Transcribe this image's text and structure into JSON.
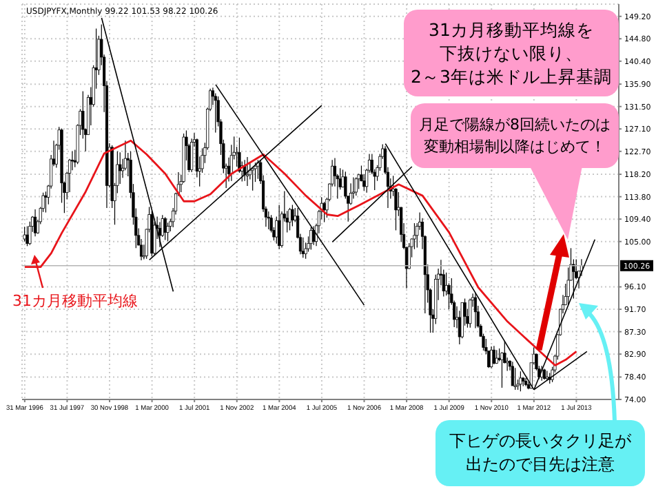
{
  "chart_data": {
    "type": "candlestick",
    "title": "USDJPYFX,Monthly  99.22 101.53 98.22 100.26",
    "color": "#000000",
    "x": [
      "1996-03",
      "1996-04",
      "1996-05",
      "1996-06",
      "1996-07",
      "1996-08",
      "1996-09",
      "1996-10",
      "1996-11",
      "1996-12",
      "1997-01",
      "1997-02",
      "1997-03",
      "1997-04",
      "1997-05",
      "1997-06",
      "1997-07",
      "1997-08",
      "1997-09",
      "1997-10",
      "1997-11",
      "1997-12",
      "1998-01",
      "1998-02",
      "1998-03",
      "1998-04",
      "1998-05",
      "1998-06",
      "1998-07",
      "1998-08",
      "1998-09",
      "1998-10",
      "1998-11",
      "1998-12",
      "1999-01",
      "1999-02",
      "1999-03",
      "1999-04",
      "1999-05",
      "1999-06",
      "1999-07",
      "1999-08",
      "1999-09",
      "1999-10",
      "1999-11",
      "1999-12",
      "2000-01",
      "2000-02",
      "2000-03",
      "2000-04",
      "2000-05",
      "2000-06",
      "2000-07",
      "2000-08",
      "2000-09",
      "2000-10",
      "2000-11",
      "2000-12",
      "2001-01",
      "2001-02",
      "2001-03",
      "2001-04",
      "2001-05",
      "2001-06",
      "2001-07",
      "2001-08",
      "2001-09",
      "2001-10",
      "2001-11",
      "2001-12",
      "2002-01",
      "2002-02",
      "2002-03",
      "2002-04",
      "2002-05",
      "2002-06",
      "2002-07",
      "2002-08",
      "2002-09",
      "2002-10",
      "2002-11",
      "2002-12",
      "2003-01",
      "2003-02",
      "2003-03",
      "2003-04",
      "2003-05",
      "2003-06",
      "2003-07",
      "2003-08",
      "2003-09",
      "2003-10",
      "2003-11",
      "2003-12",
      "2004-01",
      "2004-02",
      "2004-03",
      "2004-04",
      "2004-05",
      "2004-06",
      "2004-07",
      "2004-08",
      "2004-09",
      "2004-10",
      "2004-11",
      "2004-12",
      "2005-01",
      "2005-02",
      "2005-03",
      "2005-04",
      "2005-05",
      "2005-06",
      "2005-07",
      "2005-08",
      "2005-09",
      "2005-10",
      "2005-11",
      "2005-12",
      "2006-01",
      "2006-02",
      "2006-03",
      "2006-04",
      "2006-05",
      "2006-06",
      "2006-07",
      "2006-08",
      "2006-09",
      "2006-10",
      "2006-11",
      "2006-12",
      "2007-01",
      "2007-02",
      "2007-03",
      "2007-04",
      "2007-05",
      "2007-06",
      "2007-07",
      "2007-08",
      "2007-09",
      "2007-10",
      "2007-11",
      "2007-12",
      "2008-01",
      "2008-02",
      "2008-03",
      "2008-04",
      "2008-05",
      "2008-06",
      "2008-07",
      "2008-08",
      "2008-09",
      "2008-10",
      "2008-11",
      "2008-12",
      "2009-01",
      "2009-02",
      "2009-03",
      "2009-04",
      "2009-05",
      "2009-06",
      "2009-07",
      "2009-08",
      "2009-09",
      "2009-10",
      "2009-11",
      "2009-12",
      "2010-01",
      "2010-02",
      "2010-03",
      "2010-04",
      "2010-05",
      "2010-06",
      "2010-07",
      "2010-08",
      "2010-09",
      "2010-10",
      "2010-11",
      "2010-12",
      "2011-01",
      "2011-02",
      "2011-03",
      "2011-04",
      "2011-05",
      "2011-06",
      "2011-07",
      "2011-08",
      "2011-09",
      "2011-10",
      "2011-11",
      "2011-12",
      "2012-01",
      "2012-02",
      "2012-03",
      "2012-04",
      "2012-05",
      "2012-06",
      "2012-07",
      "2012-08",
      "2012-09",
      "2012-10",
      "2012-11",
      "2012-12",
      "2013-01",
      "2013-02",
      "2013-03",
      "2013-04",
      "2013-05",
      "2013-06",
      "2013-07",
      "2013-08",
      "2013-09"
    ],
    "ohlc": [
      [
        105.5,
        107.9,
        105.0,
        106.3
      ],
      [
        106.3,
        108.0,
        104.1,
        104.6
      ],
      [
        104.6,
        108.9,
        104.3,
        108.0
      ],
      [
        108.0,
        110.0,
        106.9,
        109.8
      ],
      [
        109.8,
        111.3,
        106.0,
        106.7
      ],
      [
        106.7,
        109.3,
        106.5,
        108.9
      ],
      [
        108.9,
        111.8,
        108.4,
        111.5
      ],
      [
        111.5,
        114.6,
        110.8,
        114.0
      ],
      [
        114.0,
        114.8,
        110.7,
        113.7
      ],
      [
        113.7,
        116.1,
        112.3,
        115.9
      ],
      [
        115.9,
        122.0,
        115.4,
        121.2
      ],
      [
        121.2,
        124.8,
        119.8,
        120.2
      ],
      [
        120.2,
        124.2,
        119.5,
        123.9
      ],
      [
        123.9,
        127.5,
        123.0,
        126.9
      ],
      [
        126.9,
        127.2,
        112.6,
        116.5
      ],
      [
        116.5,
        116.8,
        110.6,
        114.6
      ],
      [
        114.6,
        118.7,
        113.3,
        118.4
      ],
      [
        118.4,
        121.2,
        114.7,
        121.0
      ],
      [
        121.0,
        122.7,
        119.0,
        120.9
      ],
      [
        120.9,
        123.0,
        119.6,
        120.6
      ],
      [
        120.6,
        128.0,
        120.2,
        127.8
      ],
      [
        127.8,
        131.0,
        125.9,
        130.6
      ],
      [
        130.6,
        134.5,
        125.2,
        127.0
      ],
      [
        127.0,
        127.2,
        122.7,
        126.0
      ],
      [
        126.0,
        133.8,
        125.9,
        133.3
      ],
      [
        133.3,
        135.3,
        127.8,
        131.9
      ],
      [
        131.9,
        139.6,
        131.5,
        139.1
      ],
      [
        139.1,
        146.8,
        135.0,
        138.7
      ],
      [
        138.7,
        145.4,
        137.7,
        144.7
      ],
      [
        144.7,
        147.6,
        139.6,
        141.2
      ],
      [
        141.2,
        141.7,
        130.4,
        135.6
      ],
      [
        135.6,
        136.5,
        111.6,
        116.0
      ],
      [
        116.0,
        124.3,
        115.6,
        123.5
      ],
      [
        123.5,
        123.9,
        111.6,
        113.0
      ],
      [
        113.0,
        116.5,
        108.3,
        116.0
      ],
      [
        116.0,
        122.7,
        114.5,
        120.1
      ],
      [
        120.1,
        122.5,
        116.3,
        118.9
      ],
      [
        118.9,
        121.2,
        117.5,
        119.4
      ],
      [
        119.4,
        124.8,
        119.0,
        121.3
      ],
      [
        121.3,
        122.4,
        117.8,
        121.0
      ],
      [
        121.0,
        122.7,
        113.5,
        114.6
      ],
      [
        114.6,
        116.3,
        108.3,
        109.8
      ],
      [
        109.8,
        111.5,
        103.7,
        106.2
      ],
      [
        106.2,
        107.6,
        104.2,
        104.3
      ],
      [
        104.3,
        105.5,
        101.3,
        102.1
      ],
      [
        102.1,
        104.4,
        101.5,
        102.2
      ],
      [
        102.2,
        107.5,
        101.6,
        107.4
      ],
      [
        107.4,
        111.8,
        106.8,
        110.3
      ],
      [
        110.3,
        111.0,
        102.1,
        102.7
      ],
      [
        102.7,
        108.8,
        102.3,
        108.2
      ],
      [
        108.2,
        109.9,
        105.5,
        107.6
      ],
      [
        107.6,
        108.8,
        103.9,
        106.2
      ],
      [
        106.2,
        110.2,
        105.9,
        109.5
      ],
      [
        109.5,
        109.8,
        105.3,
        106.8
      ],
      [
        106.8,
        108.7,
        105.1,
        108.0
      ],
      [
        108.0,
        109.5,
        107.0,
        108.9
      ],
      [
        108.9,
        111.6,
        107.8,
        111.0
      ],
      [
        111.0,
        114.6,
        110.3,
        114.4
      ],
      [
        114.4,
        118.6,
        113.9,
        116.2
      ],
      [
        116.2,
        118.1,
        114.7,
        116.8
      ],
      [
        116.8,
        126.2,
        116.5,
        125.5
      ],
      [
        125.5,
        126.8,
        120.9,
        123.8
      ],
      [
        123.8,
        124.2,
        118.6,
        119.1
      ],
      [
        119.1,
        125.2,
        118.6,
        124.5
      ],
      [
        124.5,
        126.3,
        123.6,
        125.0
      ],
      [
        125.0,
        125.2,
        117.6,
        118.8
      ],
      [
        118.8,
        121.7,
        115.8,
        119.3
      ],
      [
        119.3,
        123.3,
        118.5,
        121.9
      ],
      [
        121.9,
        124.4,
        120.4,
        123.4
      ],
      [
        123.4,
        131.3,
        123.0,
        131.0
      ],
      [
        131.0,
        135.0,
        130.6,
        134.6
      ],
      [
        134.6,
        135.2,
        131.8,
        133.5
      ],
      [
        133.5,
        134.1,
        126.4,
        132.7
      ],
      [
        132.7,
        133.5,
        127.6,
        128.5
      ],
      [
        128.5,
        129.0,
        122.0,
        124.2
      ],
      [
        124.2,
        125.0,
        118.4,
        119.4
      ],
      [
        119.4,
        120.3,
        115.5,
        119.8
      ],
      [
        119.8,
        121.5,
        116.8,
        118.3
      ],
      [
        118.3,
        124.0,
        116.9,
        121.9
      ],
      [
        121.9,
        125.6,
        121.1,
        122.5
      ],
      [
        122.5,
        123.6,
        119.7,
        122.5
      ],
      [
        122.5,
        125.4,
        118.5,
        118.8
      ],
      [
        118.8,
        120.7,
        116.8,
        119.9
      ],
      [
        119.9,
        121.0,
        116.9,
        118.1
      ],
      [
        118.1,
        121.6,
        115.9,
        118.1
      ],
      [
        118.1,
        120.5,
        117.2,
        119.0
      ],
      [
        119.0,
        119.5,
        115.0,
        119.3
      ],
      [
        119.3,
        120.5,
        116.7,
        119.8
      ],
      [
        119.8,
        121.0,
        117.3,
        120.5
      ],
      [
        120.5,
        121.0,
        116.3,
        116.9
      ],
      [
        116.9,
        118.0,
        110.8,
        111.4
      ],
      [
        111.4,
        111.9,
        107.9,
        109.8
      ],
      [
        109.8,
        110.9,
        107.4,
        109.6
      ],
      [
        109.6,
        110.2,
        106.8,
        107.2
      ],
      [
        107.2,
        107.8,
        105.2,
        105.9
      ],
      [
        105.9,
        109.9,
        104.6,
        109.1
      ],
      [
        109.1,
        112.2,
        103.5,
        104.2
      ],
      [
        104.2,
        110.9,
        103.8,
        110.4
      ],
      [
        110.4,
        114.9,
        108.9,
        109.6
      ],
      [
        109.6,
        111.0,
        106.8,
        108.8
      ],
      [
        108.8,
        111.6,
        107.2,
        111.3
      ],
      [
        111.3,
        112.2,
        108.0,
        109.2
      ],
      [
        109.2,
        111.6,
        108.8,
        110.0
      ],
      [
        110.0,
        111.6,
        105.6,
        105.8
      ],
      [
        105.8,
        106.5,
        102.5,
        103.1
      ],
      [
        103.1,
        105.8,
        101.8,
        102.6
      ],
      [
        102.6,
        104.8,
        101.6,
        103.6
      ],
      [
        103.6,
        106.0,
        103.0,
        104.6
      ],
      [
        104.6,
        107.8,
        103.4,
        107.2
      ],
      [
        107.2,
        108.0,
        104.3,
        105.0
      ],
      [
        105.0,
        108.5,
        104.1,
        108.1
      ],
      [
        108.1,
        111.2,
        106.6,
        110.9
      ],
      [
        110.9,
        113.7,
        109.4,
        112.5
      ],
      [
        112.5,
        112.8,
        108.8,
        111.2
      ],
      [
        111.2,
        113.6,
        109.7,
        113.3
      ],
      [
        113.3,
        116.4,
        112.9,
        116.3
      ],
      [
        116.3,
        121.0,
        115.8,
        119.8
      ],
      [
        119.8,
        121.4,
        115.8,
        117.9
      ],
      [
        117.9,
        118.2,
        113.4,
        117.3
      ],
      [
        117.3,
        119.4,
        115.2,
        115.7
      ],
      [
        115.7,
        119.1,
        115.6,
        117.7
      ],
      [
        117.7,
        118.7,
        113.4,
        113.9
      ],
      [
        113.9,
        114.0,
        108.9,
        112.5
      ],
      [
        112.5,
        116.4,
        112.2,
        114.5
      ],
      [
        114.5,
        117.6,
        113.4,
        114.7
      ],
      [
        114.7,
        117.6,
        114.0,
        117.3
      ],
      [
        117.3,
        118.3,
        115.3,
        118.1
      ],
      [
        118.1,
        119.9,
        116.8,
        116.9
      ],
      [
        116.9,
        118.2,
        115.0,
        115.8
      ],
      [
        115.8,
        119.3,
        114.6,
        119.0
      ],
      [
        119.0,
        122.2,
        118.5,
        121.0
      ],
      [
        121.0,
        122.2,
        118.2,
        118.6
      ],
      [
        118.6,
        119.2,
        115.1,
        117.8
      ],
      [
        117.8,
        120.0,
        116.9,
        119.5
      ],
      [
        119.5,
        122.2,
        118.9,
        121.7
      ],
      [
        121.7,
        124.1,
        121.2,
        123.2
      ],
      [
        123.2,
        123.7,
        118.2,
        118.6
      ],
      [
        118.6,
        119.6,
        111.6,
        115.8
      ],
      [
        115.8,
        117.4,
        113.4,
        114.9
      ],
      [
        114.9,
        117.9,
        113.9,
        115.3
      ],
      [
        115.3,
        115.5,
        107.2,
        111.2
      ],
      [
        111.2,
        114.7,
        110.0,
        111.7
      ],
      [
        111.7,
        111.8,
        104.9,
        106.4
      ],
      [
        106.4,
        108.6,
        103.5,
        103.8
      ],
      [
        103.8,
        104.0,
        95.8,
        99.7
      ],
      [
        99.7,
        104.7,
        99.6,
        104.0
      ],
      [
        104.0,
        105.6,
        101.9,
        105.5
      ],
      [
        105.5,
        108.6,
        103.5,
        106.2
      ],
      [
        106.2,
        108.6,
        103.8,
        108.0
      ],
      [
        108.0,
        110.7,
        107.3,
        108.8
      ],
      [
        108.8,
        109.6,
        103.5,
        106.0
      ],
      [
        106.0,
        106.2,
        90.9,
        98.5
      ],
      [
        98.5,
        100.5,
        93.0,
        95.5
      ],
      [
        95.5,
        95.8,
        87.1,
        90.6
      ],
      [
        90.6,
        91.7,
        87.1,
        89.9
      ],
      [
        89.9,
        98.5,
        88.8,
        97.6
      ],
      [
        97.6,
        99.7,
        93.5,
        98.6
      ],
      [
        98.6,
        101.4,
        96.4,
        98.5
      ],
      [
        98.5,
        99.5,
        94.2,
        95.3
      ],
      [
        95.3,
        98.9,
        94.4,
        96.4
      ],
      [
        96.4,
        96.8,
        91.7,
        94.7
      ],
      [
        94.7,
        97.8,
        92.6,
        93.0
      ],
      [
        93.0,
        93.4,
        88.2,
        89.7
      ],
      [
        89.7,
        92.3,
        88.0,
        90.1
      ],
      [
        90.1,
        91.4,
        84.8,
        86.3
      ],
      [
        86.3,
        93.0,
        86.0,
        93.0
      ],
      [
        93.0,
        93.8,
        88.5,
        90.3
      ],
      [
        90.3,
        91.8,
        88.1,
        88.9
      ],
      [
        88.9,
        93.8,
        88.1,
        93.5
      ],
      [
        93.5,
        94.8,
        92.2,
        94.0
      ],
      [
        94.0,
        94.9,
        88.0,
        91.2
      ],
      [
        91.2,
        92.4,
        88.1,
        88.4
      ],
      [
        88.4,
        88.8,
        86.3,
        86.4
      ],
      [
        86.4,
        86.9,
        83.6,
        84.2
      ],
      [
        84.2,
        85.9,
        82.9,
        83.5
      ],
      [
        83.5,
        83.6,
        80.2,
        80.4
      ],
      [
        80.4,
        84.4,
        80.2,
        83.7
      ],
      [
        83.7,
        84.5,
        80.9,
        81.1
      ],
      [
        81.1,
        83.7,
        81.0,
        82.1
      ],
      [
        82.1,
        84.0,
        81.5,
        81.8
      ],
      [
        81.8,
        83.3,
        76.3,
        83.1
      ],
      [
        83.1,
        85.5,
        81.1,
        81.2
      ],
      [
        81.2,
        82.2,
        79.6,
        81.5
      ],
      [
        81.5,
        81.7,
        79.7,
        80.5
      ],
      [
        80.5,
        81.4,
        76.7,
        76.7
      ],
      [
        76.7,
        80.2,
        75.9,
        76.7
      ],
      [
        76.7,
        77.9,
        75.9,
        77.0
      ],
      [
        77.0,
        79.5,
        75.6,
        78.2
      ],
      [
        78.2,
        78.3,
        76.6,
        77.6
      ],
      [
        77.6,
        78.2,
        76.6,
        76.9
      ],
      [
        76.9,
        77.4,
        76.0,
        76.2
      ],
      [
        76.2,
        81.2,
        76.1,
        81.2
      ],
      [
        81.2,
        84.2,
        80.9,
        82.9
      ],
      [
        82.9,
        83.0,
        79.7,
        80.0
      ],
      [
        80.0,
        80.6,
        78.0,
        78.4
      ],
      [
        78.4,
        80.6,
        77.7,
        79.8
      ],
      [
        79.8,
        80.0,
        77.9,
        78.1
      ],
      [
        78.1,
        79.6,
        77.6,
        78.4
      ],
      [
        78.4,
        79.2,
        77.1,
        77.9
      ],
      [
        77.9,
        80.4,
        77.4,
        79.8
      ],
      [
        79.8,
        82.8,
        79.3,
        82.5
      ],
      [
        82.5,
        86.8,
        81.8,
        86.7
      ],
      [
        86.7,
        91.8,
        86.5,
        91.7
      ],
      [
        91.7,
        94.5,
        90.9,
        92.6
      ],
      [
        92.6,
        96.7,
        92.5,
        94.2
      ],
      [
        94.2,
        99.9,
        92.6,
        97.4
      ],
      [
        97.4,
        103.7,
        97.3,
        100.5
      ],
      [
        100.5,
        101.5,
        93.8,
        99.1
      ],
      [
        99.1,
        101.5,
        97.6,
        97.9
      ],
      [
        97.9,
        99.2,
        95.8,
        99.2
      ],
      [
        99.22,
        101.53,
        98.22,
        100.26
      ]
    ],
    "series": [
      {
        "name": "31カ月移動平均線",
        "type": "line",
        "color": "#e8141a",
        "x": [
          "1996-03",
          "1996-09",
          "1997-01",
          "1997-05",
          "1998-02",
          "1998-09",
          "1999-07",
          "2000-01",
          "2000-08",
          "2001-03",
          "2001-07",
          "2002-01",
          "2002-09",
          "2003-09",
          "2004-05",
          "2005-01",
          "2005-09",
          "2006-01",
          "2006-09",
          "2007-12",
          "2008-09",
          "2009-07",
          "2010-06",
          "2011-05",
          "2012-03",
          "2012-11",
          "2013-03",
          "2013-07"
        ],
        "values": [
          100.0,
          100.0,
          102.7,
          106.7,
          114.8,
          122.3,
          124.8,
          122.1,
          118.3,
          112.9,
          112.9,
          114.3,
          118.3,
          122.1,
          118.3,
          114.0,
          110.3,
          110.0,
          112.1,
          116.2,
          114.0,
          106.8,
          96.0,
          89.3,
          84.5,
          80.7,
          81.8,
          83.4
        ]
      },
      {
        "type": "line",
        "color": "#000000",
        "x": [
          "1998-08",
          "2000-11"
        ],
        "values": [
          148.9,
          95.2
        ]
      },
      {
        "type": "line",
        "color": "#000000",
        "x": [
          "2002-03",
          "2006-11"
        ],
        "values": [
          135.8,
          92.5
        ]
      },
      {
        "type": "line",
        "color": "#000000",
        "x": [
          "2000-02",
          "2005-07"
        ],
        "values": [
          101.4,
          131.7
        ]
      },
      {
        "type": "line",
        "color": "#000000",
        "x": [
          "2005-11",
          "2008-05"
        ],
        "values": [
          104.9,
          119.7
        ]
      },
      {
        "type": "line",
        "color": "#000000",
        "x": [
          "2007-07",
          "2012-03"
        ],
        "values": [
          124.2,
          75.9
        ]
      },
      {
        "type": "line",
        "color": "#000000",
        "x": [
          "2012-03",
          "2013-11"
        ],
        "values": [
          75.9,
          83.4
        ]
      },
      {
        "type": "line",
        "color": "#000000",
        "x": [
          "2012-03",
          "2014-02"
        ],
        "values": [
          75.9,
          105.4
        ]
      }
    ],
    "xlim": [
      "1996-02",
      "2014-11"
    ],
    "xticks": [
      {
        "value": "1996-03",
        "label": "31 Mar 1996"
      },
      {
        "value": "1997-07",
        "label": "31 Jul 1997"
      },
      {
        "value": "1998-11",
        "label": "30 Nov 1998"
      },
      {
        "value": "2000-03",
        "label": "1 Mar 2000"
      },
      {
        "value": "2001-07",
        "label": "1 Jul 2001"
      },
      {
        "value": "2002-11",
        "label": "1 Nov 2002"
      },
      {
        "value": "2004-03",
        "label": "1 Mar 2004"
      },
      {
        "value": "2005-07",
        "label": "1 Jul 2005"
      },
      {
        "value": "2006-11",
        "label": "1 Nov 2006"
      },
      {
        "value": "2008-03",
        "label": "1 Mar 2008"
      },
      {
        "value": "2009-07",
        "label": "1 Jul 2009"
      },
      {
        "value": "2010-11",
        "label": "1 Nov 2010"
      },
      {
        "value": "2012-03",
        "label": "1 Mar 2012"
      },
      {
        "value": "2013-07",
        "label": "1 Jul 2013"
      }
    ],
    "ylim": [
      74,
      151.6
    ],
    "yticks": [
      {
        "value": 149.2,
        "label": "149.20"
      },
      {
        "value": 144.8,
        "label": "144.80"
      },
      {
        "value": 140.4,
        "label": "140.40"
      },
      {
        "value": 135.9,
        "label": "135.90"
      },
      {
        "value": 131.5,
        "label": "131.50"
      },
      {
        "value": 127.1,
        "label": "127.10"
      },
      {
        "value": 122.7,
        "label": "122.70"
      },
      {
        "value": 118.2,
        "label": "118.20"
      },
      {
        "value": 113.8,
        "label": "113.80"
      },
      {
        "value": 109.4,
        "label": "109.40"
      },
      {
        "value": 105.0,
        "label": "105.00"
      },
      {
        "value": 96.1,
        "label": "96.10"
      },
      {
        "value": 91.7,
        "label": "91.70"
      },
      {
        "value": 87.3,
        "label": "87.30"
      },
      {
        "value": 82.9,
        "label": "82.90"
      },
      {
        "value": 78.4,
        "label": "78.40"
      },
      {
        "value": 74.0,
        "label": "74.00"
      }
    ],
    "ref_lines": [
      {
        "axis": "y",
        "value": 100.26,
        "label": "100.26",
        "color": "#b4b4b4"
      }
    ],
    "grid": true,
    "annotations": [
      "31カ月移動平均線を",
      "下抜けない限り、",
      "2～3年は米ドル上昇基調",
      "月足で陽線が8回続いたのは",
      "変動相場制以降はじめて！",
      "下ヒゲの長いタクリ足が",
      "出たので目先は注意"
    ]
  }
}
